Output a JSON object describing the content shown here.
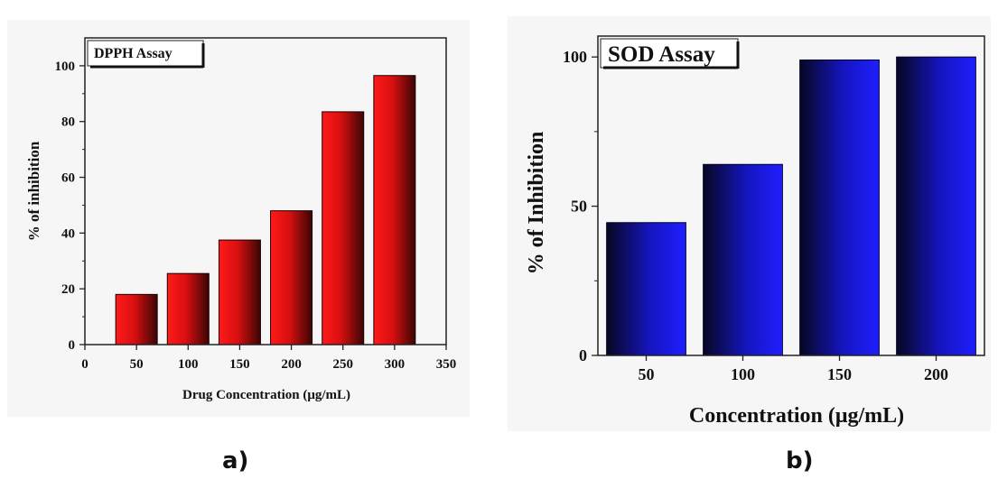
{
  "panel_labels": {
    "a": "a)",
    "b": "b)"
  },
  "chart_data": [
    {
      "type": "bar",
      "title": "DPPH Assay",
      "xlabel": "Drug Concentration (μg/mL)",
      "ylabel": "% of inhibition",
      "x": [
        50,
        100,
        150,
        200,
        250,
        300
      ],
      "values": [
        18,
        25.5,
        37.5,
        48,
        83.5,
        96.5
      ],
      "xlim": [
        0,
        350
      ],
      "ylim": [
        0,
        110
      ],
      "xticks": [
        0,
        50,
        100,
        150,
        200,
        250,
        300,
        350
      ],
      "yticks": [
        0,
        20,
        40,
        60,
        80,
        100
      ],
      "bar_width": 46,
      "color": "#e31414",
      "grid": false,
      "legend": "none"
    },
    {
      "type": "bar",
      "title": "SOD Assay",
      "xlabel": "Concentration (μg/mL)",
      "ylabel": "% of Inhibition",
      "categories": [
        "50",
        "100",
        "150",
        "200"
      ],
      "values": [
        44.5,
        64,
        99,
        100
      ],
      "ylim": [
        0,
        107
      ],
      "yticks": [
        0,
        50,
        100
      ],
      "color": "#1a1ae6",
      "grid": false,
      "legend": "none"
    }
  ]
}
